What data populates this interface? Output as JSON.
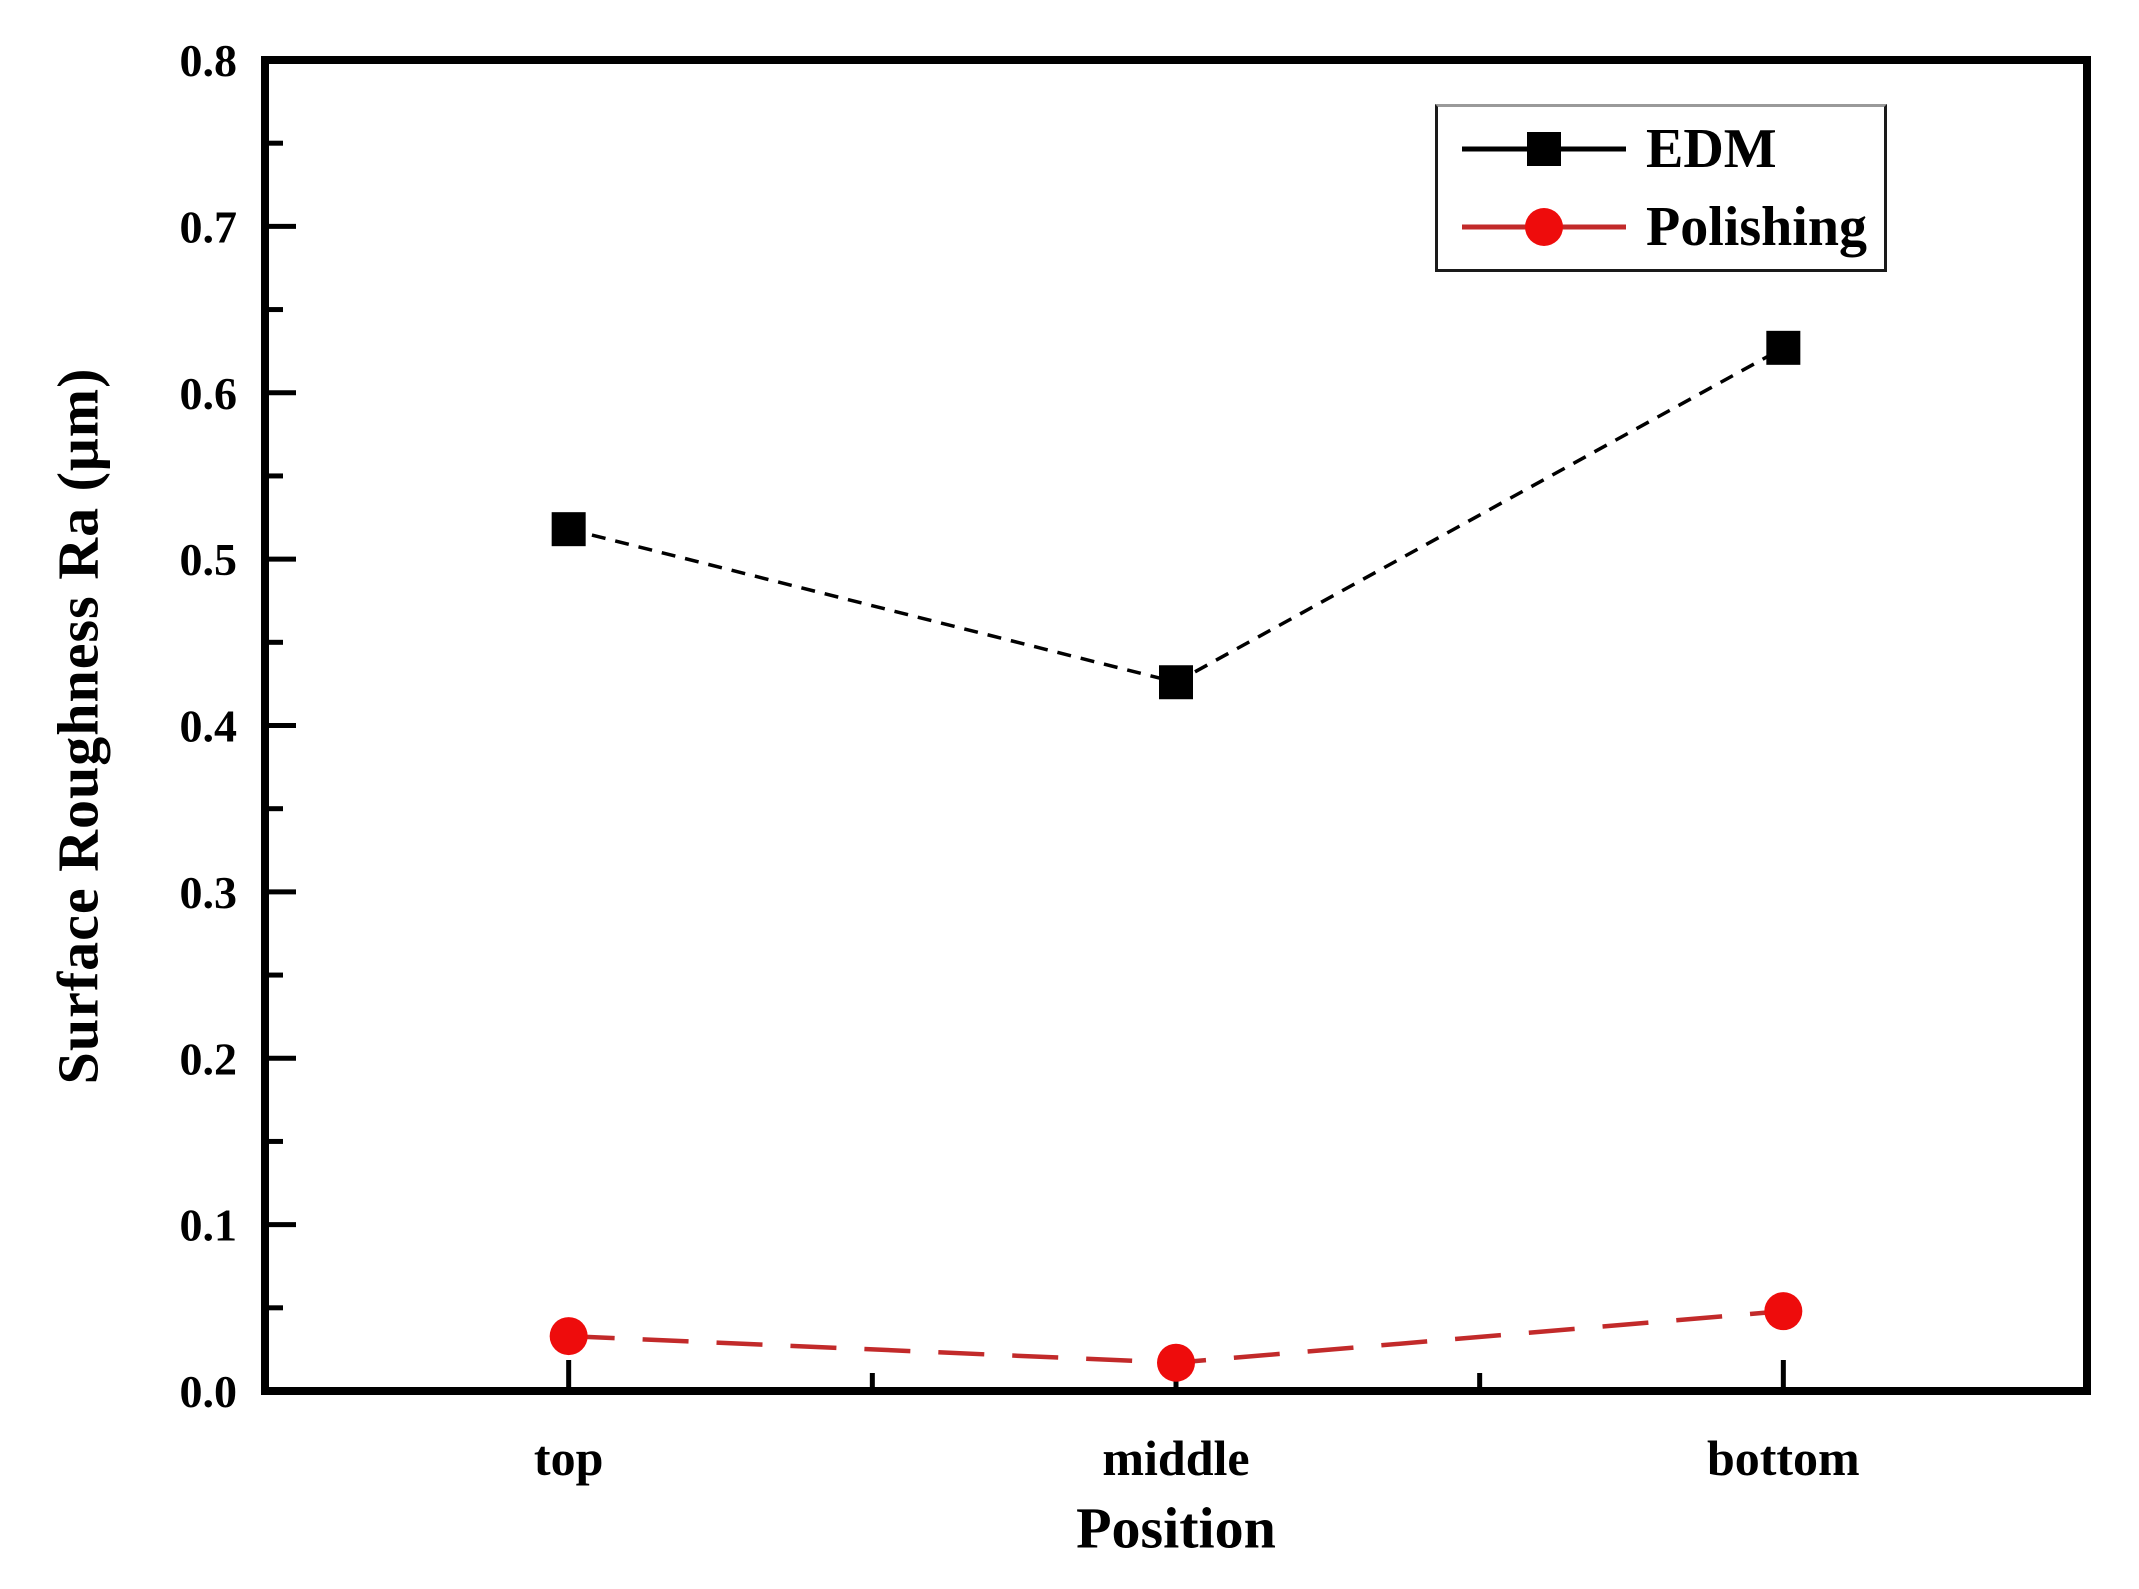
{
  "figure": {
    "background": "#ffffff",
    "frame_color": "#000000"
  },
  "axes": {
    "y": {
      "title": "Surface Roughness Ra (μm)",
      "min": 0.0,
      "max": 0.8,
      "major_step": 0.1,
      "minor_step": 0.05,
      "tick_labels": [
        "0.0",
        "0.1",
        "0.2",
        "0.3",
        "0.4",
        "0.5",
        "0.6",
        "0.7",
        "0.8"
      ]
    },
    "x": {
      "title": "Position",
      "categories": [
        "top",
        "middle",
        "bottom"
      ]
    }
  },
  "legend": {
    "position": "upper-right",
    "entries": [
      {
        "label": "EDM",
        "marker": "square",
        "marker_color": "#000000",
        "line_color": "#000000"
      },
      {
        "label": "Polishing",
        "marker": "circle",
        "marker_color": "#ee0c0c",
        "line_color": "#c22a2a"
      }
    ]
  },
  "chart_data": {
    "type": "line",
    "categories": [
      "top",
      "middle",
      "bottom"
    ],
    "series": [
      {
        "name": "EDM",
        "values": [
          0.518,
          0.426,
          0.627
        ],
        "color": "#000000",
        "marker": "square",
        "marker_color": "#000000",
        "line_style": "short-dash"
      },
      {
        "name": "Polishing",
        "values": [
          0.033,
          0.017,
          0.048
        ],
        "color": "#c22a2a",
        "marker": "circle",
        "marker_color": "#ee0c0c",
        "line_style": "long-dash"
      }
    ],
    "title": "",
    "xlabel": "Position",
    "ylabel": "Surface Roughness Ra (μm)",
    "ylim": [
      0.0,
      0.8
    ],
    "grid": false,
    "legend_position": "upper right"
  }
}
